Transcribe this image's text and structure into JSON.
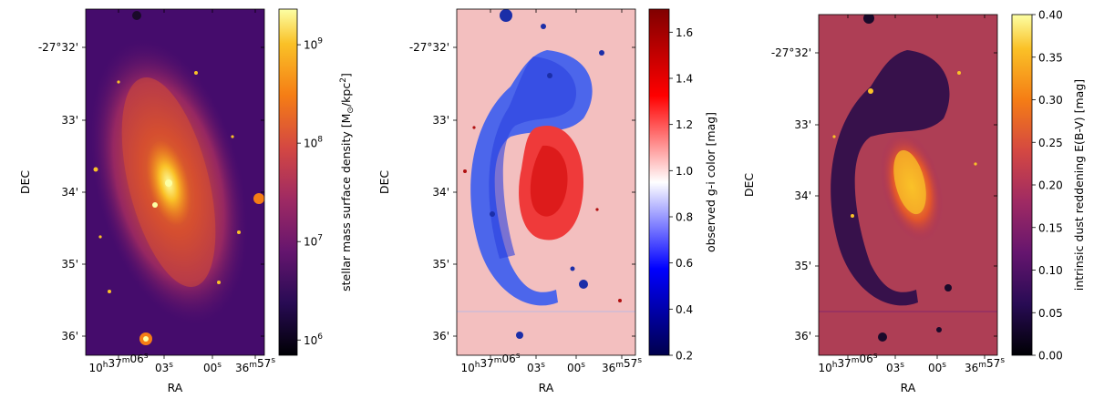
{
  "chart_data": [
    {
      "type": "heatmap",
      "xlabel": "RA",
      "ylabel": "DEC",
      "ra_ticks": [
        {
          "parts": [
            [
              "10",
              "h"
            ],
            [
              "37",
              "m"
            ],
            [
              "06",
              "s"
            ]
          ]
        },
        {
          "parts": [
            [
              "03",
              "s"
            ]
          ]
        },
        {
          "parts": [
            [
              "00",
              "s"
            ]
          ]
        },
        {
          "parts": [
            [
              "36",
              "m"
            ],
            [
              "57",
              "s"
            ]
          ]
        }
      ],
      "dec_ticks": [
        "-27°32'",
        "33'",
        "34'",
        "35'",
        "36'"
      ],
      "colorbar": {
        "label": "stellar mass surface density [M",
        "label_sub": "⊙",
        "label_mid": "/kpc",
        "label_sup": "2",
        "label_end": "]",
        "scale": "log",
        "range": [
          700000,
          2300000000
        ],
        "ticks": [
          {
            "base": "10",
            "exp": "6",
            "value": 1000000
          },
          {
            "base": "10",
            "exp": "7",
            "value": 10000000
          },
          {
            "base": "10",
            "exp": "8",
            "value": 100000000
          },
          {
            "base": "10",
            "exp": "9",
            "value": 1000000000
          }
        ],
        "colormap": "inferno"
      }
    },
    {
      "type": "heatmap",
      "xlabel": "RA",
      "ylabel": "DEC",
      "ra_ticks": [
        {
          "parts": [
            [
              "10",
              "h"
            ],
            [
              "37",
              "m"
            ],
            [
              "06",
              "s"
            ]
          ]
        },
        {
          "parts": [
            [
              "03",
              "s"
            ]
          ]
        },
        {
          "parts": [
            [
              "00",
              "s"
            ]
          ]
        },
        {
          "parts": [
            [
              "36",
              "m"
            ],
            [
              "57",
              "s"
            ]
          ]
        }
      ],
      "dec_ticks": [
        "-27°32'",
        "33'",
        "34'",
        "35'",
        "36'"
      ],
      "colorbar": {
        "label": "observed g-i color [mag]",
        "scale": "linear",
        "range": [
          0.2,
          1.7
        ],
        "ticks": [
          "0.2",
          "0.4",
          "0.6",
          "0.8",
          "1.0",
          "1.2",
          "1.4",
          "1.6"
        ],
        "colormap": "seismic"
      }
    },
    {
      "type": "heatmap",
      "xlabel": "RA",
      "ylabel": "DEC",
      "ra_ticks": [
        {
          "parts": [
            [
              "10",
              "h"
            ],
            [
              "37",
              "m"
            ],
            [
              "06",
              "s"
            ]
          ]
        },
        {
          "parts": [
            [
              "03",
              "s"
            ]
          ]
        },
        {
          "parts": [
            [
              "00",
              "s"
            ]
          ]
        },
        {
          "parts": [
            [
              "36",
              "m"
            ],
            [
              "57",
              "s"
            ]
          ]
        }
      ],
      "dec_ticks": [
        "-27°32'",
        "33'",
        "34'",
        "35'",
        "36'"
      ],
      "colorbar": {
        "label": "intrinsic dust reddening E(B-V) [mag]",
        "scale": "linear",
        "range": [
          0.0,
          0.4
        ],
        "ticks": [
          "0.00",
          "0.05",
          "0.10",
          "0.15",
          "0.20",
          "0.25",
          "0.30",
          "0.35",
          "0.40"
        ],
        "colormap": "inferno"
      }
    }
  ]
}
